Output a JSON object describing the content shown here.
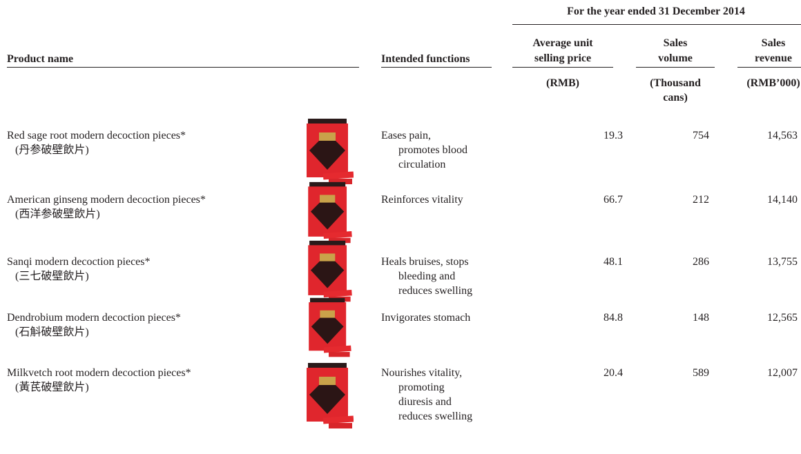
{
  "table": {
    "period_header": "For the year ended 31 December 2014",
    "headers": {
      "product": "Product name",
      "functions": "Intended functions",
      "price": [
        "Average unit",
        "selling price"
      ],
      "volume": [
        "Sales",
        "volume"
      ],
      "revenue": [
        "Sales",
        "revenue"
      ]
    },
    "units": {
      "price": [
        "(RMB)"
      ],
      "volume": [
        "(Thousand",
        "cans)"
      ],
      "revenue": [
        "(RMB’000)"
      ]
    },
    "rows": [
      {
        "name": "Red sage root modern decoction pieces*",
        "chinese": "(丹参破壁飲片)",
        "functions": [
          "Eases pain,",
          "promotes blood",
          "circulation"
        ],
        "price": "19.3",
        "volume": "754",
        "revenue": "14,563"
      },
      {
        "name": "American ginseng modern decoction pieces*",
        "chinese": "(西洋参破壁飲片)",
        "functions": [
          "Reinforces vitality"
        ],
        "price": "66.7",
        "volume": "212",
        "revenue": "14,140"
      },
      {
        "name": "Sanqi modern decoction pieces*",
        "chinese": "(三七破壁飲片)",
        "functions": [
          "Heals bruises, stops",
          "bleeding and",
          "reduces swelling"
        ],
        "price": "48.1",
        "volume": "286",
        "revenue": "13,755"
      },
      {
        "name": "Dendrobium modern decoction pieces*",
        "chinese": "(石斛破壁飲片)",
        "functions": [
          "Invigorates stomach"
        ],
        "price": "84.8",
        "volume": "148",
        "revenue": "12,565"
      },
      {
        "name": "Milkvetch root modern decoction pieces*",
        "chinese": "(黃芪破壁飲片)",
        "functions": [
          "Nourishes vitality,",
          "promoting",
          "diuresis and",
          "reduces swelling"
        ],
        "price": "20.4",
        "volume": "589",
        "revenue": "12,007"
      }
    ]
  }
}
